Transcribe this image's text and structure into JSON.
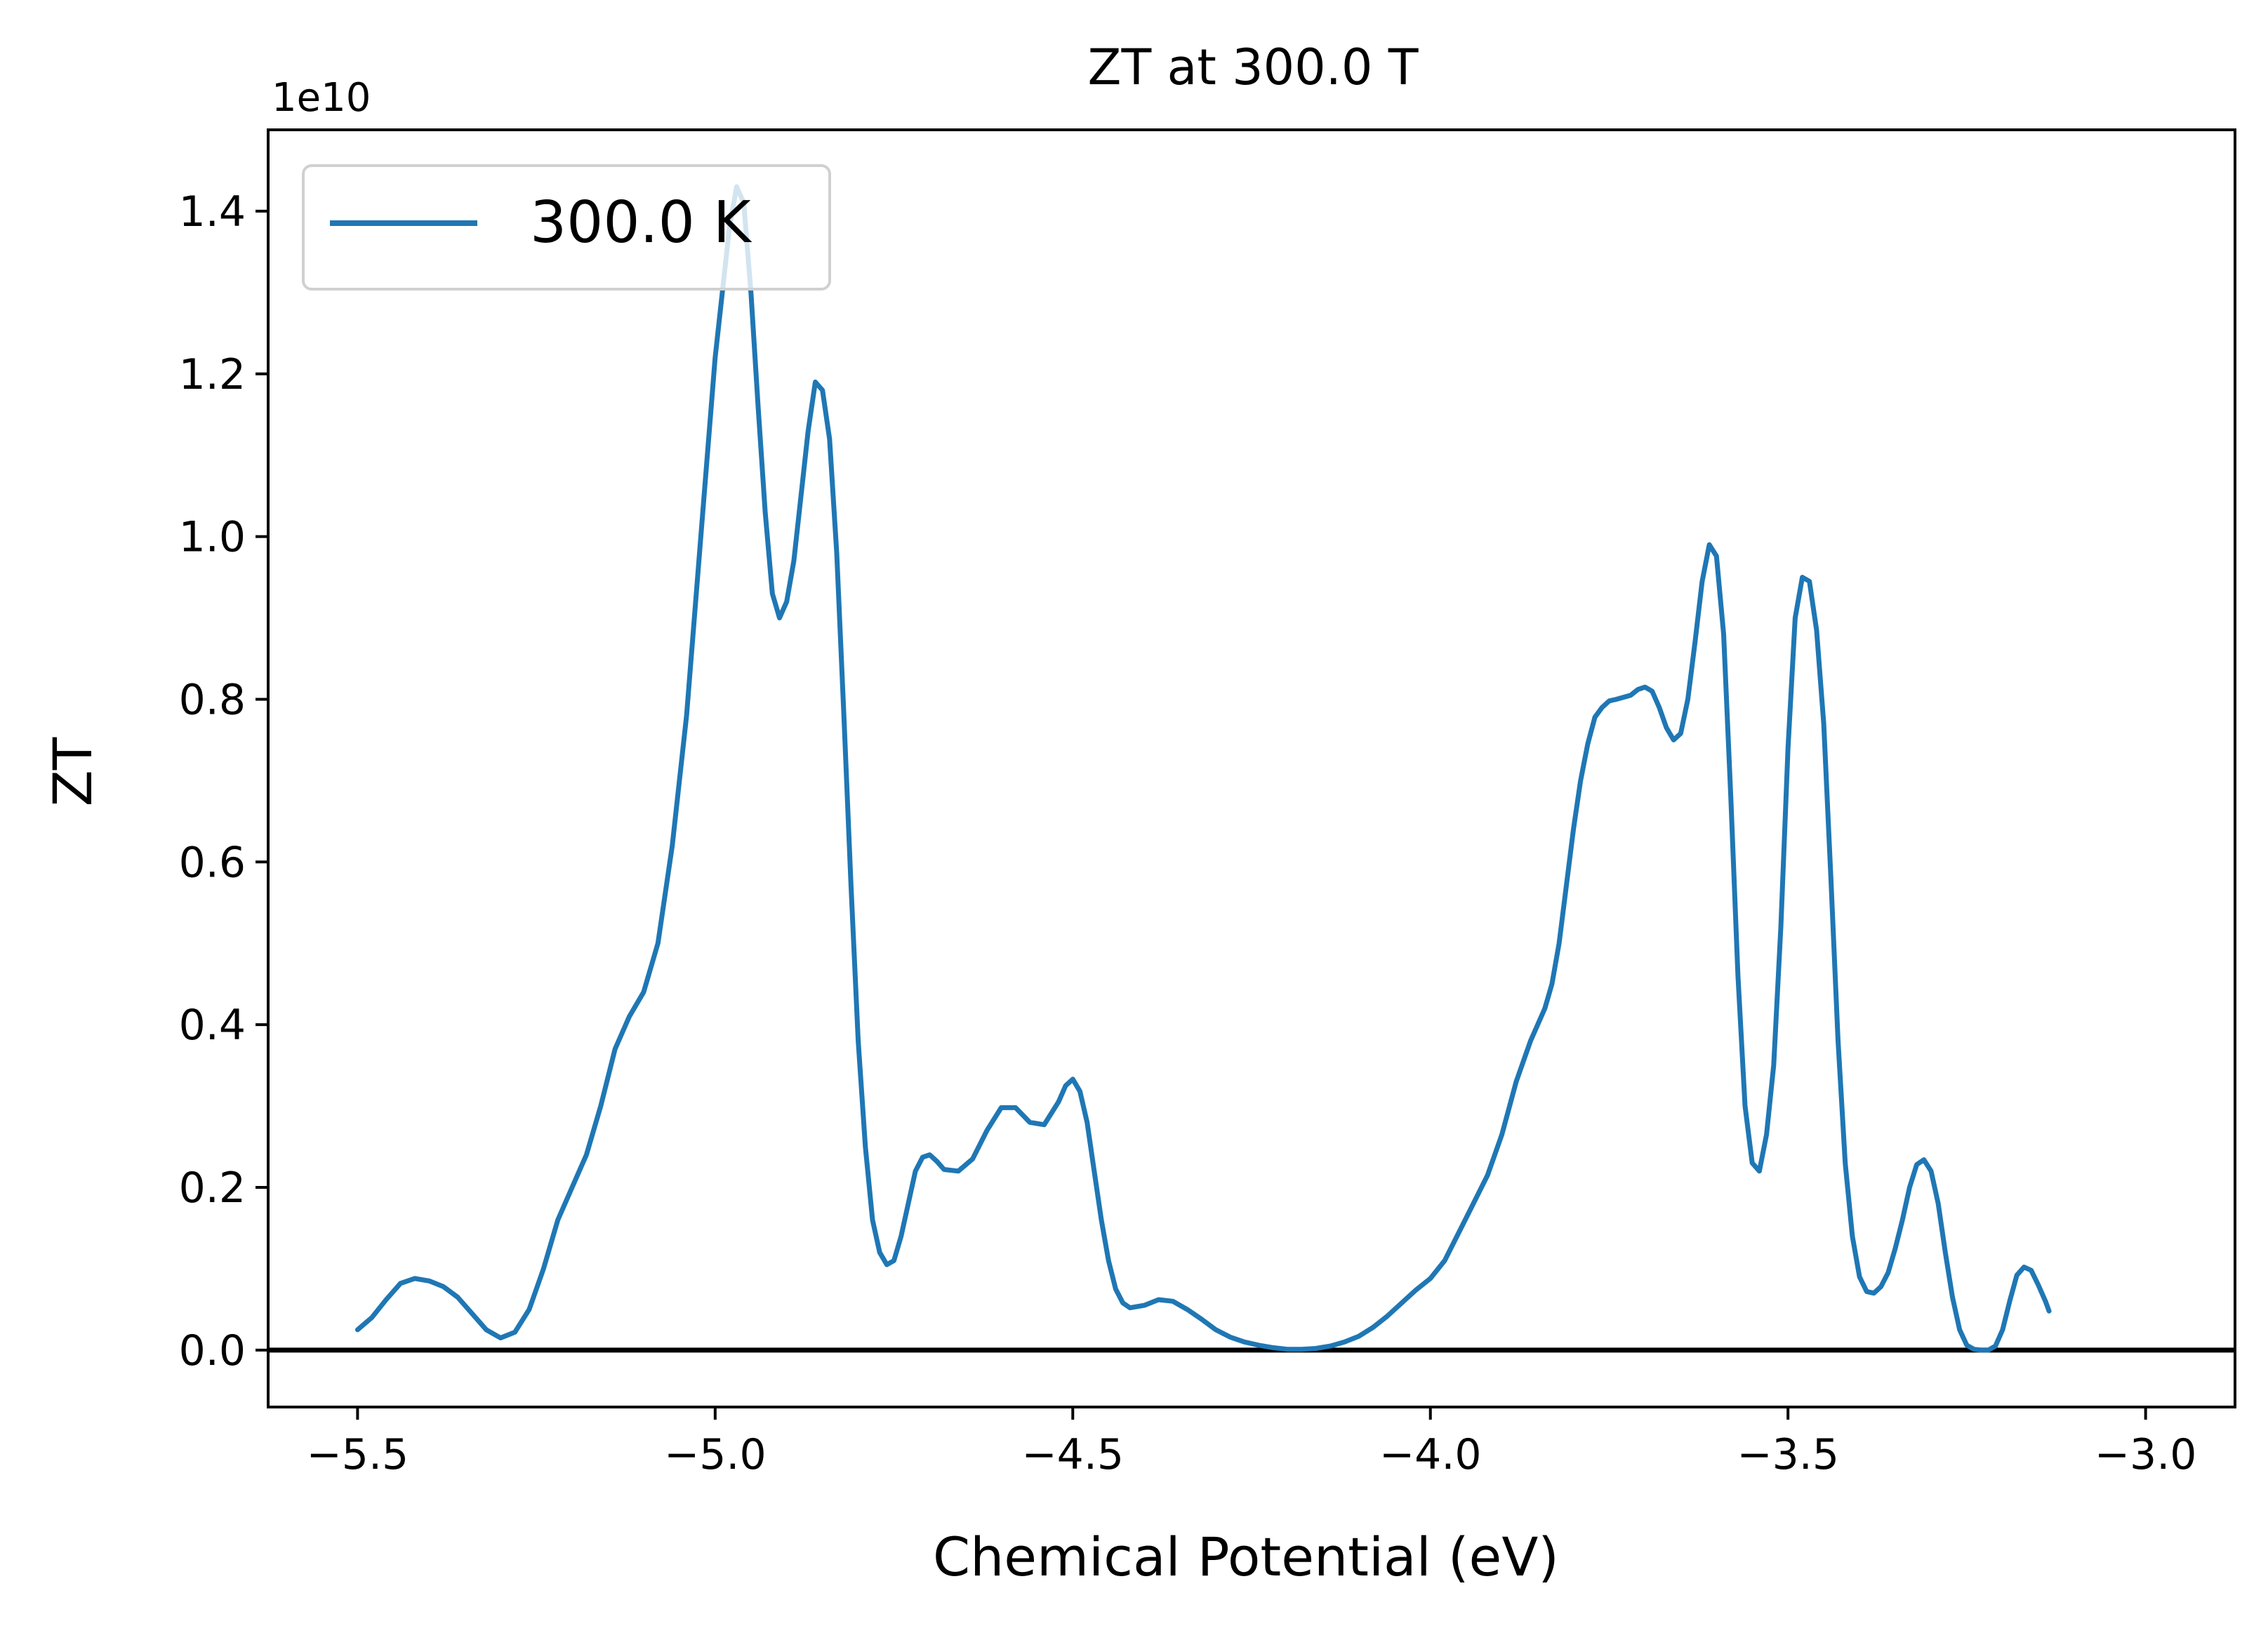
{
  "chart_data": {
    "type": "line",
    "title": "ZT at 300.0 T",
    "xlabel": "Chemical Potential (eV)",
    "ylabel": "ZT",
    "y_scale_label": "1e10",
    "xlim": [
      -5.625,
      -2.875
    ],
    "ylim": [
      -0.07,
      1.5
    ],
    "y_multiplier": 10000000000.0,
    "xticks": [
      -5.5,
      -5.0,
      -4.5,
      -4.0,
      -3.5,
      -3.0
    ],
    "xtick_labels": [
      "−5.5",
      "−5.0",
      "−4.5",
      "−4.0",
      "−3.5",
      "−3.0"
    ],
    "yticks": [
      0.0,
      0.2,
      0.4,
      0.6,
      0.8,
      1.0,
      1.2,
      1.4
    ],
    "ytick_labels": [
      "0.0",
      "0.2",
      "0.4",
      "0.6",
      "0.8",
      "1.0",
      "1.2",
      "1.4"
    ],
    "grid": false,
    "legend_position": "top-left",
    "hline": 0.0,
    "series": [
      {
        "name": "300.0 K",
        "color": "#1f77b4",
        "points": [
          [
            -5.5,
            0.025
          ],
          [
            -5.48,
            0.04
          ],
          [
            -5.46,
            0.062
          ],
          [
            -5.44,
            0.082
          ],
          [
            -5.42,
            0.088
          ],
          [
            -5.4,
            0.085
          ],
          [
            -5.38,
            0.078
          ],
          [
            -5.36,
            0.065
          ],
          [
            -5.34,
            0.045
          ],
          [
            -5.32,
            0.025
          ],
          [
            -5.3,
            0.015
          ],
          [
            -5.28,
            0.022
          ],
          [
            -5.26,
            0.05
          ],
          [
            -5.24,
            0.1
          ],
          [
            -5.22,
            0.16
          ],
          [
            -5.2,
            0.2
          ],
          [
            -5.18,
            0.24
          ],
          [
            -5.16,
            0.3
          ],
          [
            -5.14,
            0.37
          ],
          [
            -5.12,
            0.41
          ],
          [
            -5.1,
            0.44
          ],
          [
            -5.08,
            0.5
          ],
          [
            -5.06,
            0.62
          ],
          [
            -5.04,
            0.78
          ],
          [
            -5.02,
            1.0
          ],
          [
            -5.0,
            1.22
          ],
          [
            -4.98,
            1.38
          ],
          [
            -4.97,
            1.43
          ],
          [
            -4.96,
            1.41
          ],
          [
            -4.95,
            1.3
          ],
          [
            -4.94,
            1.16
          ],
          [
            -4.93,
            1.03
          ],
          [
            -4.92,
            0.93
          ],
          [
            -4.91,
            0.9
          ],
          [
            -4.9,
            0.92
          ],
          [
            -4.89,
            0.97
          ],
          [
            -4.88,
            1.05
          ],
          [
            -4.87,
            1.13
          ],
          [
            -4.86,
            1.19
          ],
          [
            -4.85,
            1.18
          ],
          [
            -4.84,
            1.12
          ],
          [
            -4.83,
            0.98
          ],
          [
            -4.82,
            0.78
          ],
          [
            -4.81,
            0.57
          ],
          [
            -4.8,
            0.38
          ],
          [
            -4.79,
            0.25
          ],
          [
            -4.78,
            0.16
          ],
          [
            -4.77,
            0.12
          ],
          [
            -4.76,
            0.105
          ],
          [
            -4.75,
            0.11
          ],
          [
            -4.74,
            0.14
          ],
          [
            -4.73,
            0.18
          ],
          [
            -4.72,
            0.22
          ],
          [
            -4.71,
            0.237
          ],
          [
            -4.7,
            0.24
          ],
          [
            -4.69,
            0.232
          ],
          [
            -4.68,
            0.222
          ],
          [
            -4.66,
            0.22
          ],
          [
            -4.64,
            0.235
          ],
          [
            -4.62,
            0.27
          ],
          [
            -4.6,
            0.298
          ],
          [
            -4.58,
            0.298
          ],
          [
            -4.56,
            0.28
          ],
          [
            -4.54,
            0.277
          ],
          [
            -4.52,
            0.305
          ],
          [
            -4.51,
            0.325
          ],
          [
            -4.5,
            0.333
          ],
          [
            -4.49,
            0.318
          ],
          [
            -4.48,
            0.28
          ],
          [
            -4.47,
            0.22
          ],
          [
            -4.46,
            0.16
          ],
          [
            -4.45,
            0.11
          ],
          [
            -4.44,
            0.075
          ],
          [
            -4.43,
            0.058
          ],
          [
            -4.42,
            0.052
          ],
          [
            -4.4,
            0.055
          ],
          [
            -4.38,
            0.062
          ],
          [
            -4.36,
            0.06
          ],
          [
            -4.34,
            0.05
          ],
          [
            -4.32,
            0.038
          ],
          [
            -4.3,
            0.025
          ],
          [
            -4.28,
            0.016
          ],
          [
            -4.26,
            0.01
          ],
          [
            -4.24,
            0.006
          ],
          [
            -4.22,
            0.003
          ],
          [
            -4.2,
            0.001
          ],
          [
            -4.18,
            0.001
          ],
          [
            -4.16,
            0.002
          ],
          [
            -4.14,
            0.005
          ],
          [
            -4.12,
            0.01
          ],
          [
            -4.1,
            0.017
          ],
          [
            -4.08,
            0.028
          ],
          [
            -4.06,
            0.042
          ],
          [
            -4.04,
            0.058
          ],
          [
            -4.02,
            0.074
          ],
          [
            -4.0,
            0.088
          ],
          [
            -3.98,
            0.11
          ],
          [
            -3.96,
            0.145
          ],
          [
            -3.94,
            0.18
          ],
          [
            -3.92,
            0.215
          ],
          [
            -3.9,
            0.265
          ],
          [
            -3.88,
            0.33
          ],
          [
            -3.86,
            0.38
          ],
          [
            -3.84,
            0.42
          ],
          [
            -3.83,
            0.45
          ],
          [
            -3.82,
            0.5
          ],
          [
            -3.81,
            0.57
          ],
          [
            -3.8,
            0.64
          ],
          [
            -3.79,
            0.7
          ],
          [
            -3.78,
            0.745
          ],
          [
            -3.77,
            0.778
          ],
          [
            -3.76,
            0.79
          ],
          [
            -3.75,
            0.798
          ],
          [
            -3.74,
            0.8
          ],
          [
            -3.72,
            0.805
          ],
          [
            -3.71,
            0.812
          ],
          [
            -3.7,
            0.815
          ],
          [
            -3.69,
            0.81
          ],
          [
            -3.68,
            0.79
          ],
          [
            -3.67,
            0.765
          ],
          [
            -3.66,
            0.75
          ],
          [
            -3.65,
            0.758
          ],
          [
            -3.64,
            0.8
          ],
          [
            -3.63,
            0.87
          ],
          [
            -3.62,
            0.945
          ],
          [
            -3.61,
            0.99
          ],
          [
            -3.6,
            0.976
          ],
          [
            -3.59,
            0.88
          ],
          [
            -3.58,
            0.68
          ],
          [
            -3.57,
            0.46
          ],
          [
            -3.56,
            0.3
          ],
          [
            -3.55,
            0.23
          ],
          [
            -3.54,
            0.22
          ],
          [
            -3.53,
            0.265
          ],
          [
            -3.52,
            0.35
          ],
          [
            -3.51,
            0.52
          ],
          [
            -3.5,
            0.74
          ],
          [
            -3.49,
            0.9
          ],
          [
            -3.48,
            0.95
          ],
          [
            -3.47,
            0.945
          ],
          [
            -3.46,
            0.885
          ],
          [
            -3.45,
            0.77
          ],
          [
            -3.44,
            0.58
          ],
          [
            -3.43,
            0.38
          ],
          [
            -3.42,
            0.23
          ],
          [
            -3.41,
            0.14
          ],
          [
            -3.4,
            0.09
          ],
          [
            -3.39,
            0.072
          ],
          [
            -3.38,
            0.07
          ],
          [
            -3.37,
            0.078
          ],
          [
            -3.36,
            0.095
          ],
          [
            -3.35,
            0.125
          ],
          [
            -3.34,
            0.16
          ],
          [
            -3.33,
            0.2
          ],
          [
            -3.32,
            0.228
          ],
          [
            -3.31,
            0.234
          ],
          [
            -3.3,
            0.22
          ],
          [
            -3.29,
            0.18
          ],
          [
            -3.28,
            0.12
          ],
          [
            -3.27,
            0.065
          ],
          [
            -3.26,
            0.025
          ],
          [
            -3.25,
            0.006
          ],
          [
            -3.24,
            0.001
          ],
          [
            -3.23,
            0.0
          ],
          [
            -3.22,
            0.0
          ],
          [
            -3.21,
            0.005
          ],
          [
            -3.2,
            0.025
          ],
          [
            -3.19,
            0.06
          ],
          [
            -3.18,
            0.092
          ],
          [
            -3.17,
            0.102
          ],
          [
            -3.16,
            0.098
          ],
          [
            -3.15,
            0.08
          ],
          [
            -3.14,
            0.06
          ],
          [
            -3.135,
            0.048
          ]
        ]
      }
    ]
  }
}
